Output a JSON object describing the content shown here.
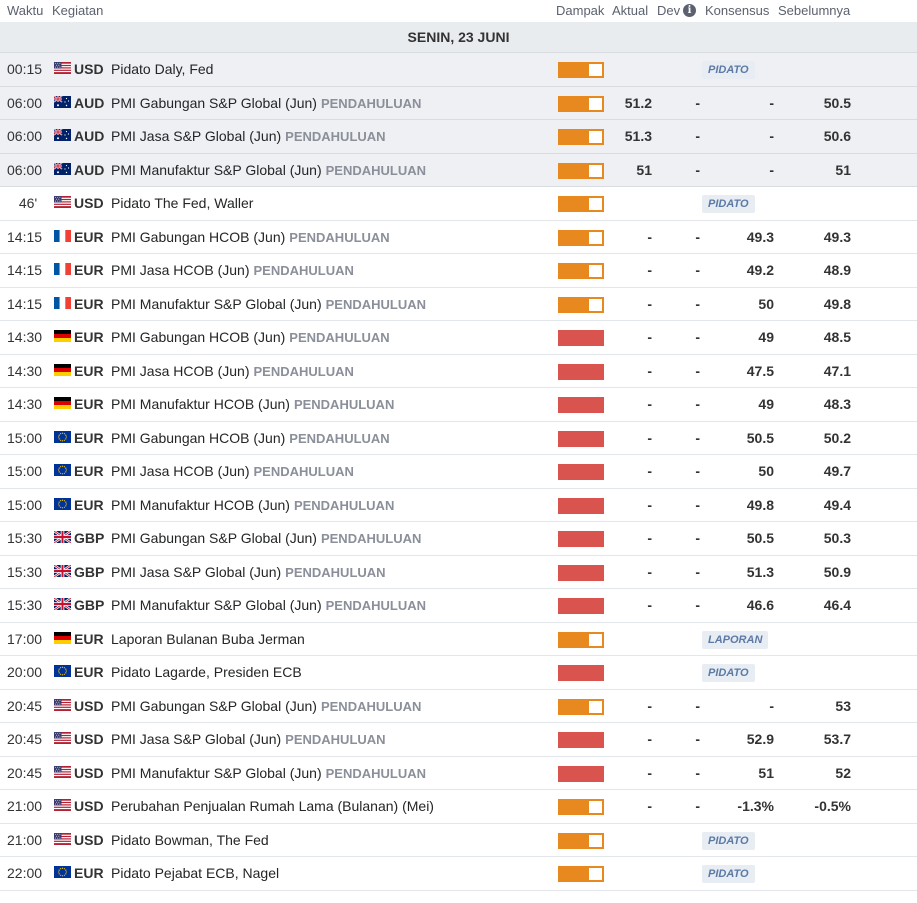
{
  "header": {
    "waktu": "Waktu",
    "kegiatan": "Kegiatan",
    "dampak": "Dampak",
    "aktual": "Aktual",
    "dev": "Dev",
    "info_icon": "i",
    "konsensus": "Konsensus",
    "sebelumnya": "Sebelumnya"
  },
  "date_label": "SENIN, 23 JUNI",
  "rows": [
    {
      "time": "00:15",
      "flag": "us",
      "cur": "USD",
      "event": "Pidato Daly, Fed",
      "pre": "",
      "impact": "medium",
      "badge": "PIDATO",
      "shaded": true
    },
    {
      "time": "06:00",
      "flag": "au",
      "cur": "AUD",
      "event": "PMI Gabungan S&P Global (Jun)",
      "pre": "PENDAHULUAN",
      "impact": "medium",
      "aktual": "51.2",
      "dev": "-",
      "kons": "-",
      "seb": "50.5",
      "shaded": true
    },
    {
      "time": "06:00",
      "flag": "au",
      "cur": "AUD",
      "event": "PMI Jasa S&P Global (Jun)",
      "pre": "PENDAHULUAN",
      "impact": "medium",
      "aktual": "51.3",
      "dev": "-",
      "kons": "-",
      "seb": "50.6",
      "shaded": true
    },
    {
      "time": "06:00",
      "flag": "au",
      "cur": "AUD",
      "event": "PMI Manufaktur S&P Global (Jun)",
      "pre": "PENDAHULUAN",
      "impact": "medium",
      "aktual": "51",
      "dev": "-",
      "kons": "-",
      "seb": "51",
      "shaded": true
    },
    {
      "time": "46'",
      "flag": "us",
      "cur": "USD",
      "event": "Pidato The Fed, Waller",
      "pre": "",
      "impact": "medium",
      "badge": "PIDATO"
    },
    {
      "time": "14:15",
      "flag": "fr",
      "cur": "EUR",
      "event": "PMI Gabungan HCOB (Jun)",
      "pre": "PENDAHULUAN",
      "impact": "medium",
      "aktual": "-",
      "dev": "-",
      "kons": "49.3",
      "seb": "49.3"
    },
    {
      "time": "14:15",
      "flag": "fr",
      "cur": "EUR",
      "event": "PMI Jasa HCOB (Jun)",
      "pre": "PENDAHULUAN",
      "impact": "medium",
      "aktual": "-",
      "dev": "-",
      "kons": "49.2",
      "seb": "48.9"
    },
    {
      "time": "14:15",
      "flag": "fr",
      "cur": "EUR",
      "event": "PMI Manufaktur S&P Global (Jun)",
      "pre": "PENDAHULUAN",
      "impact": "medium",
      "aktual": "-",
      "dev": "-",
      "kons": "50",
      "seb": "49.8"
    },
    {
      "time": "14:30",
      "flag": "de",
      "cur": "EUR",
      "event": "PMI Gabungan HCOB (Jun)",
      "pre": "PENDAHULUAN",
      "impact": "high",
      "aktual": "-",
      "dev": "-",
      "kons": "49",
      "seb": "48.5"
    },
    {
      "time": "14:30",
      "flag": "de",
      "cur": "EUR",
      "event": "PMI Jasa HCOB (Jun)",
      "pre": "PENDAHULUAN",
      "impact": "high",
      "aktual": "-",
      "dev": "-",
      "kons": "47.5",
      "seb": "47.1"
    },
    {
      "time": "14:30",
      "flag": "de",
      "cur": "EUR",
      "event": "PMI Manufaktur HCOB (Jun)",
      "pre": "PENDAHULUAN",
      "impact": "high",
      "aktual": "-",
      "dev": "-",
      "kons": "49",
      "seb": "48.3"
    },
    {
      "time": "15:00",
      "flag": "eu",
      "cur": "EUR",
      "event": "PMI Gabungan HCOB (Jun)",
      "pre": "PENDAHULUAN",
      "impact": "high",
      "aktual": "-",
      "dev": "-",
      "kons": "50.5",
      "seb": "50.2"
    },
    {
      "time": "15:00",
      "flag": "eu",
      "cur": "EUR",
      "event": "PMI Jasa HCOB (Jun)",
      "pre": "PENDAHULUAN",
      "impact": "high",
      "aktual": "-",
      "dev": "-",
      "kons": "50",
      "seb": "49.7"
    },
    {
      "time": "15:00",
      "flag": "eu",
      "cur": "EUR",
      "event": "PMI Manufaktur HCOB (Jun)",
      "pre": "PENDAHULUAN",
      "impact": "high",
      "aktual": "-",
      "dev": "-",
      "kons": "49.8",
      "seb": "49.4"
    },
    {
      "time": "15:30",
      "flag": "gb",
      "cur": "GBP",
      "event": "PMI Gabungan S&P Global (Jun)",
      "pre": "PENDAHULUAN",
      "impact": "high",
      "aktual": "-",
      "dev": "-",
      "kons": "50.5",
      "seb": "50.3"
    },
    {
      "time": "15:30",
      "flag": "gb",
      "cur": "GBP",
      "event": "PMI Jasa S&P Global (Jun)",
      "pre": "PENDAHULUAN",
      "impact": "high",
      "aktual": "-",
      "dev": "-",
      "kons": "51.3",
      "seb": "50.9"
    },
    {
      "time": "15:30",
      "flag": "gb",
      "cur": "GBP",
      "event": "PMI Manufaktur S&P Global (Jun)",
      "pre": "PENDAHULUAN",
      "impact": "high",
      "aktual": "-",
      "dev": "-",
      "kons": "46.6",
      "seb": "46.4"
    },
    {
      "time": "17:00",
      "flag": "de",
      "cur": "EUR",
      "event": "Laporan Bulanan Buba Jerman",
      "pre": "",
      "impact": "medium",
      "badge": "LAPORAN"
    },
    {
      "time": "20:00",
      "flag": "eu",
      "cur": "EUR",
      "event": "Pidato Lagarde, Presiden ECB",
      "pre": "",
      "impact": "high",
      "badge": "PIDATO"
    },
    {
      "time": "20:45",
      "flag": "us",
      "cur": "USD",
      "event": "PMI Gabungan S&P Global (Jun)",
      "pre": "PENDAHULUAN",
      "impact": "medium",
      "aktual": "-",
      "dev": "-",
      "kons": "-",
      "seb": "53"
    },
    {
      "time": "20:45",
      "flag": "us",
      "cur": "USD",
      "event": "PMI Jasa S&P Global (Jun)",
      "pre": "PENDAHULUAN",
      "impact": "high",
      "aktual": "-",
      "dev": "-",
      "kons": "52.9",
      "seb": "53.7"
    },
    {
      "time": "20:45",
      "flag": "us",
      "cur": "USD",
      "event": "PMI Manufaktur S&P Global (Jun)",
      "pre": "PENDAHULUAN",
      "impact": "high",
      "aktual": "-",
      "dev": "-",
      "kons": "51",
      "seb": "52"
    },
    {
      "time": "21:00",
      "flag": "us",
      "cur": "USD",
      "event": "Perubahan Penjualan Rumah Lama (Bulanan) (Mei)",
      "pre": "",
      "impact": "medium",
      "aktual": "-",
      "dev": "-",
      "kons": "-1.3%",
      "seb": "-0.5%"
    },
    {
      "time": "21:00",
      "flag": "us",
      "cur": "USD",
      "event": "Pidato Bowman, The Fed",
      "pre": "",
      "impact": "medium",
      "badge": "PIDATO"
    },
    {
      "time": "22:00",
      "flag": "eu",
      "cur": "EUR",
      "event": "Pidato Pejabat ECB, Nagel",
      "pre": "",
      "impact": "medium",
      "badge": "PIDATO"
    }
  ],
  "colors": {
    "impact_medium": "#e8891f",
    "impact_high": "#d9534f",
    "shaded_row": "#eef0f3",
    "badge_bg": "#e8edf3",
    "badge_text": "#5b7aa6"
  }
}
